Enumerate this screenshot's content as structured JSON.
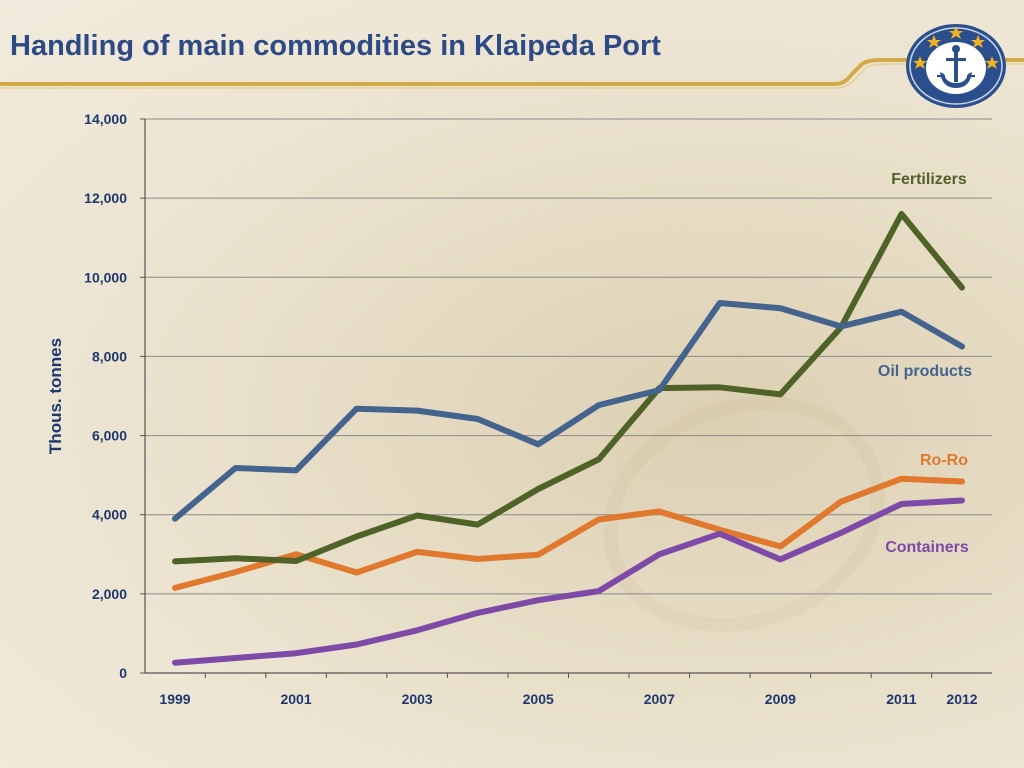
{
  "page": {
    "title": "Handling of main commodities in Klaipeda Port"
  },
  "logo": {
    "icon": "anchor-with-stars-emblem-icon",
    "colors": {
      "outer": "#2b4f8c",
      "inner": "#ffffff",
      "anchor": "#2b4f8c",
      "stars": "#f0b323"
    }
  },
  "colors": {
    "title": "#2e4a86",
    "rule": "#d4a94a",
    "axis_text": "#1f3870",
    "fertilizers": "#4f6228",
    "oil_products": "#44648e",
    "ro_ro": "#e0782d",
    "containers": "#7d4aa8"
  },
  "chart_data": {
    "type": "line",
    "x": [
      1999,
      2000,
      2001,
      2002,
      2003,
      2004,
      2005,
      2006,
      2007,
      2008,
      2009,
      2010,
      2011,
      2012
    ],
    "x_tick_labels": [
      "1999",
      "2001",
      "2003",
      "2005",
      "2007",
      "2009",
      "2011",
      "2012"
    ],
    "x_tick_values": [
      1999,
      2001,
      2003,
      2005,
      2007,
      2009,
      2011,
      2012
    ],
    "ylabel": "Thous. tonnes",
    "ylim": [
      0,
      14000
    ],
    "y_ticks": [
      0,
      2000,
      4000,
      6000,
      8000,
      10000,
      12000,
      14000
    ],
    "y_tick_labels": [
      "0",
      "2,000",
      "4,000",
      "6,000",
      "8,000",
      "10,000",
      "12,000",
      "14,000"
    ],
    "grid": true,
    "series": [
      {
        "name": "Oil products",
        "color": "#44648e",
        "values": [
          3900,
          5180,
          5120,
          6680,
          6630,
          6420,
          5780,
          6770,
          7150,
          9350,
          9220,
          8760,
          9130,
          8250
        ]
      },
      {
        "name": "Fertilizers",
        "color": "#4f6228",
        "values": [
          2820,
          2900,
          2830,
          3450,
          3980,
          3750,
          4650,
          5400,
          7200,
          7220,
          7040,
          8730,
          11600,
          9740
        ]
      },
      {
        "name": "Ro-Ro",
        "color": "#e0782d",
        "values": [
          2150,
          2550,
          3000,
          2540,
          3060,
          2880,
          2990,
          3880,
          4080,
          3620,
          3200,
          4330,
          4910,
          4840
        ]
      },
      {
        "name": "Containers",
        "color": "#7d4aa8",
        "values": [
          260,
          380,
          500,
          720,
          1080,
          1520,
          1840,
          2070,
          3000,
          3520,
          2870,
          3540,
          4270,
          4360
        ]
      }
    ]
  }
}
